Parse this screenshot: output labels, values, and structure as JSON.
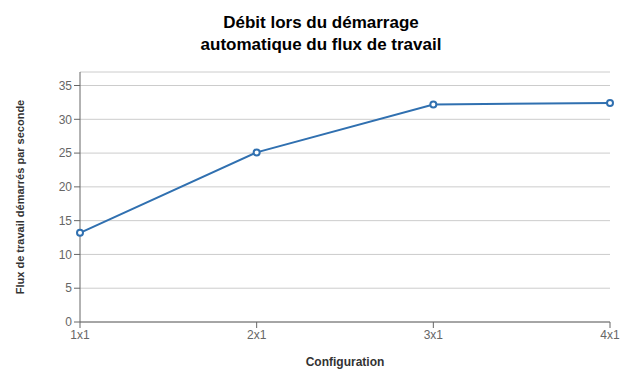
{
  "chart_data": {
    "type": "line",
    "title": "Débit lors du démarrage\nautomatique du flux de travail",
    "xlabel": "Configuration",
    "ylabel": "Flux de travail démarrés par seconde",
    "categories": [
      "1x1",
      "2x1",
      "3x1",
      "4x1"
    ],
    "values": [
      13.2,
      25.1,
      32.2,
      32.4
    ],
    "color": "#3070B0",
    "ylim": [
      0,
      37
    ],
    "yticks": [
      0,
      5,
      10,
      15,
      20,
      25,
      30,
      35
    ],
    "grid": true
  }
}
